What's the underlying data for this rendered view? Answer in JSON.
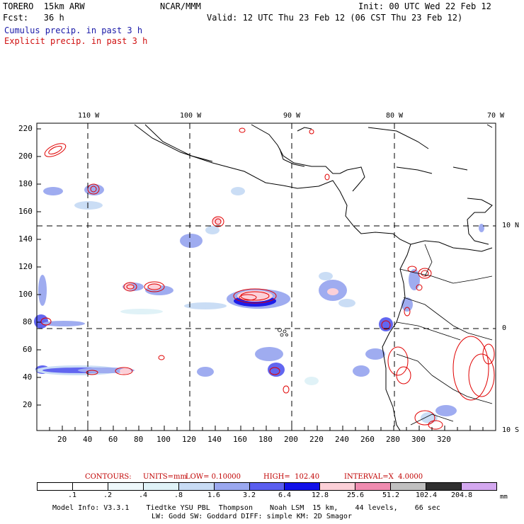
{
  "header": {
    "model": "TORERO  15km ARW",
    "org": "NCAR/MMM",
    "init": "Init: 00 UTC Wed 22 Feb 12",
    "fcst": "Fcst:   36 h",
    "valid": "Valid: 12 UTC Thu 23 Feb 12 (06 CST Thu 23 Feb 12)",
    "field1": "Cumulus precip. in past 3 h",
    "field2": "Explicit precip. in past 3 h"
  },
  "map": {
    "top_lon_labels": [
      "110 W",
      "100 W",
      "90 W",
      "80 W",
      "70 W"
    ],
    "right_lat_labels": [
      "10 N",
      "0",
      "10 S"
    ],
    "left_grid_labels": [
      "220",
      "200",
      "180",
      "160",
      "140",
      "120",
      "100",
      "80",
      "60",
      "40",
      "20"
    ],
    "bottom_grid_labels": [
      "20",
      "40",
      "60",
      "80",
      "100",
      "120",
      "140",
      "160",
      "180",
      "200",
      "220",
      "240",
      "260",
      "280",
      "300",
      "320"
    ]
  },
  "contours": {
    "label": "CONTOURS:",
    "units": "UNITS=mm",
    "low": "LOW= 0.10000",
    "high": "HIGH=  102.40",
    "interval": "INTERVAL=X  4.0000"
  },
  "colorbar": {
    "labels": [
      ".1",
      ".2",
      ".4",
      ".8",
      "1.6",
      "3.2",
      "6.4",
      "12.8",
      "25.6",
      "51.2",
      "102.4",
      "204.8"
    ],
    "unit": "mm",
    "colors": [
      "#ffffff",
      "#ffffff",
      "#eef8fb",
      "#dff2f7",
      "#c8dcf5",
      "#9aa8f0",
      "#5a5ef0",
      "#1010e8",
      "#fcd0d8",
      "#f08cb0",
      "#c0c0c0",
      "#303030",
      "#d4a8f0"
    ]
  },
  "footer": {
    "line1": "Model Info: V3.3.1    Tiedtke YSU PBL  Thompson    Noah LSM  15 km,    44 levels,    66 sec",
    "line2": "LW: Godd SW: Goddard DIFF: simple KM: 2D Smagor"
  }
}
